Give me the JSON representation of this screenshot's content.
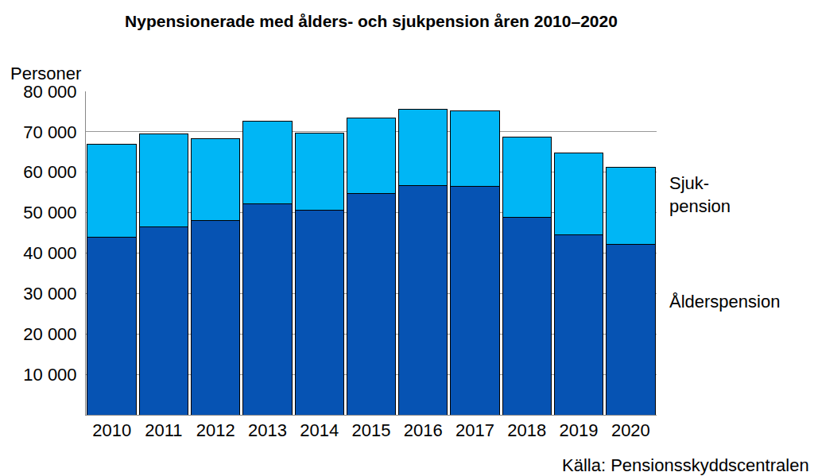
{
  "chart_data": {
    "type": "bar",
    "title": "Nypensionerade med ålders- och sjukpension åren 2010–2020",
    "ylabel": "Personer",
    "source": "Källa: Pensionsskyddscentralen",
    "stacked": true,
    "grid": true,
    "categories": [
      "2010",
      "2011",
      "2012",
      "2013",
      "2014",
      "2015",
      "2016",
      "2017",
      "2018",
      "2019",
      "2020"
    ],
    "series": [
      {
        "name": "Ålderspension",
        "color": "#0653b3",
        "values": [
          44000,
          46500,
          48000,
          52200,
          50700,
          54800,
          56800,
          56600,
          48800,
          44500,
          42100
        ]
      },
      {
        "name": "Sjuk-\npension",
        "color": "#00b6f5",
        "values": [
          23000,
          23000,
          20400,
          20400,
          18900,
          18700,
          18800,
          18600,
          19900,
          20300,
          19100
        ]
      }
    ],
    "ylim": [
      0,
      80000
    ],
    "yticks": [
      {
        "value": 10000,
        "label": "10 000"
      },
      {
        "value": 20000,
        "label": "20 000"
      },
      {
        "value": 30000,
        "label": "30 000"
      },
      {
        "value": 40000,
        "label": "40 000"
      },
      {
        "value": 50000,
        "label": "50 000"
      },
      {
        "value": 60000,
        "label": "60 000"
      },
      {
        "value": 70000,
        "label": "70 000"
      },
      {
        "value": 80000,
        "label": "80 000"
      }
    ]
  }
}
